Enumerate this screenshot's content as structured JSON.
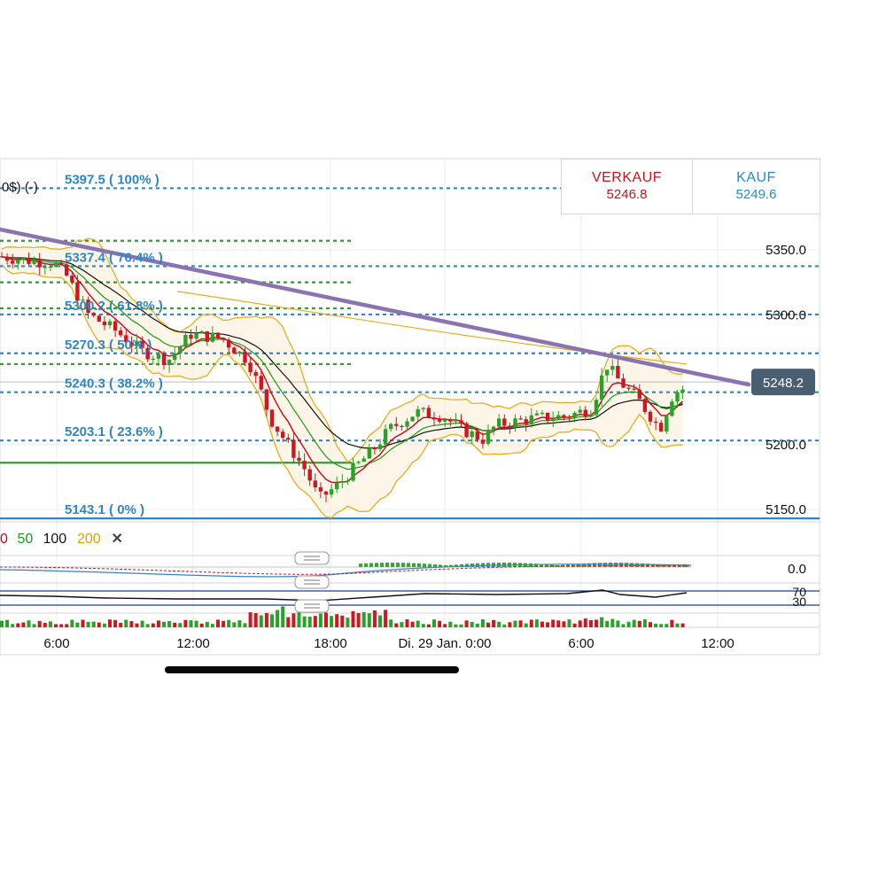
{
  "header": {
    "title_fragment": "0$) (-)"
  },
  "quotes": {
    "sell": {
      "label": "VERKAUF",
      "value": "5246.8"
    },
    "buy": {
      "label": "KAUF",
      "value": "5249.6"
    }
  },
  "price_axis": {
    "ticks": [
      {
        "value": 5350,
        "label": "5350.0"
      },
      {
        "value": 5300,
        "label": "5300.0"
      },
      {
        "value": 5200,
        "label": "5200.0"
      },
      {
        "value": 5150,
        "label": "5150.0"
      }
    ],
    "current_price": {
      "value": 5248.2,
      "label": "5248.2"
    }
  },
  "fibonacci": [
    {
      "value": 5397.5,
      "label": "5397.5 ( 100% )"
    },
    {
      "value": 5337.4,
      "label": "5337.4 ( 76.4% )"
    },
    {
      "value": 5300.2,
      "label": "5300.2 ( 61.8% )"
    },
    {
      "value": 5270.3,
      "label": "5270.3 ( 50% )"
    },
    {
      "value": 5240.3,
      "label": "5240.3 ( 38.2% )"
    },
    {
      "value": 5203.1,
      "label": "5203.1 ( 23.6% )"
    },
    {
      "value": 5143.1,
      "label": "5143.1 ( 0% )"
    }
  ],
  "green_levels": [
    5357,
    5325,
    5305,
    5262,
    5186
  ],
  "moving_averages": {
    "legend": [
      {
        "label": "0",
        "color": "#d0021b"
      },
      {
        "label": "50",
        "color": "#1a9a1a"
      },
      {
        "label": "100",
        "color": "#111111"
      },
      {
        "label": "200",
        "color": "#e0a000"
      }
    ],
    "close_label": "✕"
  },
  "indicators": {
    "macd_zero_label": "0.0",
    "rsi_labels": [
      "70",
      "30"
    ]
  },
  "time_axis": [
    "6:00",
    "12:00",
    "18:00",
    "Di. 29 Jan. 0:00",
    "6:00",
    "12:00"
  ],
  "colors": {
    "fib_line": "#2f86c4",
    "green_level": "#2f9e2f",
    "trendline": "#8a73b0",
    "bollinger": "#e6ad1f",
    "price_badge": "#4a5e72",
    "sell": "#c3141d",
    "buy": "#1c8fc9"
  },
  "icons": [
    "close-icon",
    "panel-drag-handle-icon"
  ]
}
